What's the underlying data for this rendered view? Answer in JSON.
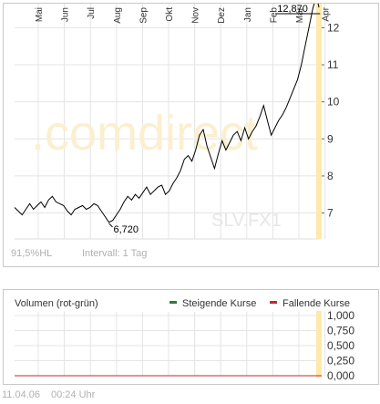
{
  "chart_data": [
    {
      "type": "line",
      "watermark": ".comdirect",
      "symbol": "SLV.FX1",
      "months": [
        "Mai",
        "Jun",
        "Jul",
        "Aug",
        "Sep",
        "Okt",
        "Nov",
        "Dez",
        "Jan",
        "Feb",
        "Mär",
        "Apr"
      ],
      "y_ticks": [
        7,
        8,
        9,
        10,
        11,
        12
      ],
      "ylim": [
        6.3,
        12.65
      ],
      "grid": true,
      "axis_position": "right",
      "high_label": "12,870",
      "low_label": "6,720",
      "range_pct": "91,5%HL",
      "interval": "Intervall: 1 Tag",
      "points": [
        [
          0,
          7.15
        ],
        [
          3,
          7.05
        ],
        [
          6,
          6.95
        ],
        [
          9,
          7.1
        ],
        [
          12,
          7.25
        ],
        [
          15,
          7.1
        ],
        [
          18,
          7.2
        ],
        [
          21,
          7.3
        ],
        [
          24,
          7.15
        ],
        [
          27,
          7.35
        ],
        [
          30,
          7.45
        ],
        [
          33,
          7.3
        ],
        [
          36,
          7.25
        ],
        [
          39,
          7.2
        ],
        [
          42,
          7.05
        ],
        [
          45,
          6.95
        ],
        [
          48,
          7.1
        ],
        [
          51,
          7.15
        ],
        [
          54,
          7.2
        ],
        [
          57,
          7.1
        ],
        [
          60,
          7.15
        ],
        [
          63,
          7.25
        ],
        [
          66,
          7.2
        ],
        [
          69,
          7.05
        ],
        [
          72,
          6.9
        ],
        [
          75,
          6.75
        ],
        [
          78,
          6.8
        ],
        [
          81,
          6.95
        ],
        [
          84,
          7.1
        ],
        [
          87,
          7.3
        ],
        [
          90,
          7.45
        ],
        [
          93,
          7.35
        ],
        [
          96,
          7.5
        ],
        [
          99,
          7.4
        ],
        [
          102,
          7.55
        ],
        [
          105,
          7.7
        ],
        [
          108,
          7.5
        ],
        [
          111,
          7.6
        ],
        [
          114,
          7.7
        ],
        [
          117,
          7.75
        ],
        [
          120,
          7.5
        ],
        [
          123,
          7.6
        ],
        [
          126,
          7.8
        ],
        [
          129,
          7.95
        ],
        [
          132,
          8.15
        ],
        [
          135,
          8.45
        ],
        [
          138,
          8.55
        ],
        [
          141,
          8.4
        ],
        [
          144,
          8.7
        ],
        [
          147,
          9.1
        ],
        [
          150,
          9.25
        ],
        [
          153,
          8.8
        ],
        [
          156,
          8.5
        ],
        [
          159,
          8.2
        ],
        [
          162,
          8.6
        ],
        [
          165,
          8.95
        ],
        [
          168,
          8.7
        ],
        [
          171,
          8.9
        ],
        [
          174,
          9.1
        ],
        [
          177,
          9.2
        ],
        [
          180,
          8.95
        ],
        [
          183,
          9.3
        ],
        [
          186,
          9.0
        ],
        [
          189,
          9.2
        ],
        [
          192,
          9.35
        ],
        [
          195,
          9.6
        ],
        [
          198,
          9.9
        ],
        [
          201,
          9.5
        ],
        [
          204,
          9.1
        ],
        [
          207,
          9.3
        ],
        [
          210,
          9.5
        ],
        [
          213,
          9.65
        ],
        [
          216,
          9.85
        ],
        [
          219,
          10.1
        ],
        [
          222,
          10.35
        ],
        [
          225,
          10.6
        ],
        [
          228,
          11.0
        ],
        [
          231,
          11.5
        ],
        [
          234,
          12.0
        ],
        [
          237,
          12.5
        ],
        [
          240,
          12.87
        ],
        [
          242,
          12.55
        ]
      ],
      "low_point": [
        75,
        6.72
      ],
      "high_point": [
        240,
        12.87
      ]
    },
    {
      "type": "bar",
      "title": "Volumen (rot-grün)",
      "legend": [
        {
          "label": "Steigende Kurse",
          "color": "#2e7d32"
        },
        {
          "label": "Fallende Kurse",
          "color": "#c62828"
        }
      ],
      "y_ticks": [
        "1,000",
        "0,750",
        "0,500",
        "0,250",
        "0,000"
      ],
      "ylim": [
        0,
        1
      ],
      "values": []
    }
  ],
  "footer": {
    "date": "11.04.06",
    "time": "00:24 Uhr"
  },
  "colors": {
    "line": "#000000",
    "grid": "#e4e4e4",
    "highlight": "#ffe9a8"
  }
}
